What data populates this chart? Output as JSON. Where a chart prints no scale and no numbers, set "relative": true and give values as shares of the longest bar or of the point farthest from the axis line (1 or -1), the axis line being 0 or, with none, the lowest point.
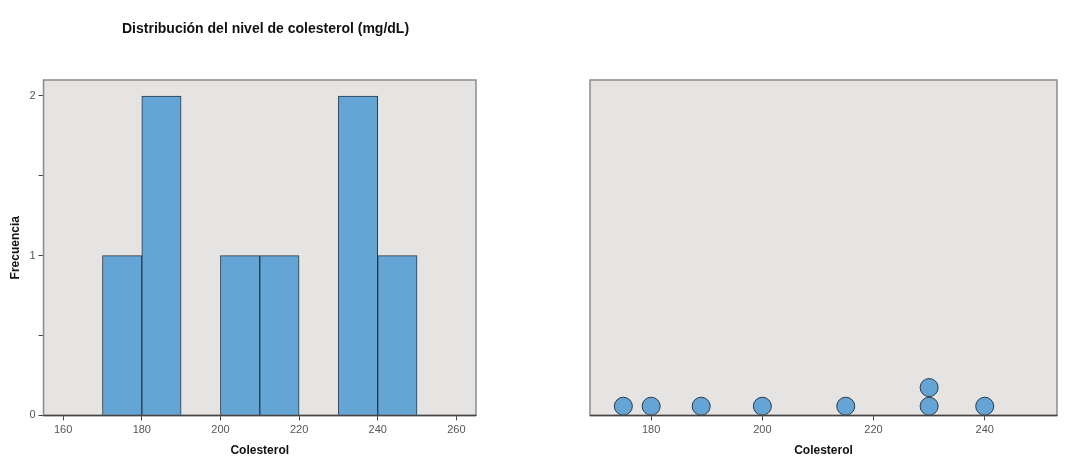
{
  "chart_data": [
    {
      "type": "histogram",
      "title": "Distribución del nivel de colesterol (mg/dL)",
      "xlabel": "Colesterol",
      "ylabel": "Frecuencia",
      "bins": [
        170,
        180,
        190,
        200,
        210,
        220,
        230,
        240,
        250
      ],
      "values": [
        1,
        2,
        0,
        1,
        1,
        0,
        2,
        1
      ],
      "color": "#65a5d5",
      "xlim": [
        155,
        265
      ],
      "xticks": [
        160,
        180,
        200,
        220,
        240,
        260
      ],
      "ylim": [
        0,
        2.1
      ],
      "yticks": [
        0,
        {
          "value": 0.5,
          "label": null
        },
        1,
        {
          "value": 1.5,
          "label": null
        },
        2
      ],
      "grid": false
    },
    {
      "type": "scatter",
      "xlabel": "Colesterol",
      "x": [
        175,
        180,
        189,
        200,
        215,
        230,
        230,
        240
      ],
      "values": [
        0.33,
        0.33,
        0.33,
        0.33,
        0.33,
        0.33,
        1,
        0.33
      ],
      "relative": true,
      "color": "#65a5d5",
      "marker": "circle",
      "xlim": [
        169,
        253
      ],
      "xticks": [
        180,
        200,
        220,
        240
      ],
      "grid": false
    }
  ]
}
